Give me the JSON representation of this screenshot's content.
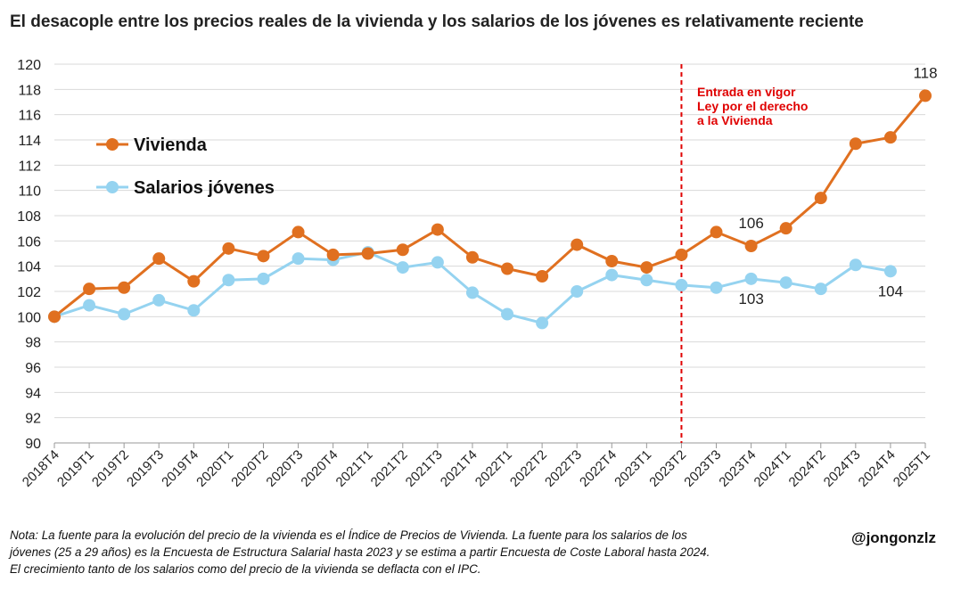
{
  "title": "El desacople entre los precios reales de la vivienda y los salarios de los jóvenes es relativamente reciente",
  "note": "Nota: La fuente para la evolución del precio de la vivienda es el Índice de Precios de Vivienda. La fuente para los salarios de los jóvenes (25 a 29 años) es la Encuesta de Estructura Salarial hasta 2023 y se estima a partir Encuesta de Coste Laboral hasta 2024. El crecimiento tanto de los salarios como del precio de la vivienda se deflacta con el IPC.",
  "handle": "@jongonzlz",
  "chart_data": {
    "type": "line",
    "title": "El desacople entre los precios reales de la vivienda y los salarios de los jóvenes es relativamente reciente",
    "xlabel": "",
    "ylabel": "",
    "ylim": [
      90,
      120
    ],
    "yticks": [
      90,
      92,
      94,
      96,
      98,
      100,
      102,
      104,
      106,
      108,
      110,
      112,
      114,
      116,
      118,
      120
    ],
    "grid": true,
    "legend": "top-left",
    "categories": [
      "2018T4",
      "2019T1",
      "2019T2",
      "2019T3",
      "2019T4",
      "2020T1",
      "2020T2",
      "2020T3",
      "2020T4",
      "2021T1",
      "2021T2",
      "2021T3",
      "2021T4",
      "2022T1",
      "2022T2",
      "2022T3",
      "2022T4",
      "2023T1",
      "2023T2",
      "2023T3",
      "2023T4",
      "2024T1",
      "2024T2",
      "2024T3",
      "2024T4",
      "2025T1"
    ],
    "series": [
      {
        "name": "Vivienda",
        "color": "#E07020",
        "values": [
          100,
          102.2,
          102.3,
          104.6,
          102.8,
          105.4,
          104.8,
          106.7,
          104.9,
          105.0,
          105.3,
          106.9,
          104.7,
          103.8,
          103.2,
          105.7,
          104.4,
          103.9,
          104.9,
          106.7,
          105.6,
          107.0,
          109.4,
          113.7,
          114.2,
          117.5
        ]
      },
      {
        "name": "Salarios jóvenes",
        "color": "#95D3F0",
        "values": [
          100,
          100.9,
          100.2,
          101.3,
          100.5,
          102.9,
          103.0,
          104.6,
          104.5,
          105.1,
          103.9,
          104.3,
          101.9,
          100.2,
          99.5,
          102.0,
          103.3,
          102.9,
          102.5,
          102.3,
          103.0,
          102.7,
          102.2,
          104.1,
          103.6,
          null
        ]
      }
    ],
    "data_labels": [
      {
        "series": 0,
        "index": 20,
        "text": "106",
        "pos": "above"
      },
      {
        "series": 1,
        "index": 20,
        "text": "103",
        "pos": "below"
      },
      {
        "series": 0,
        "index": 25,
        "text": "118",
        "pos": "above"
      },
      {
        "series": 1,
        "index": 24,
        "text": "104",
        "pos": "below"
      }
    ],
    "annotation": {
      "category": "2023T2",
      "color": "#E00000",
      "lines": [
        "Entrada en vigor",
        "Ley por el derecho",
        "a la Vivienda"
      ]
    }
  }
}
